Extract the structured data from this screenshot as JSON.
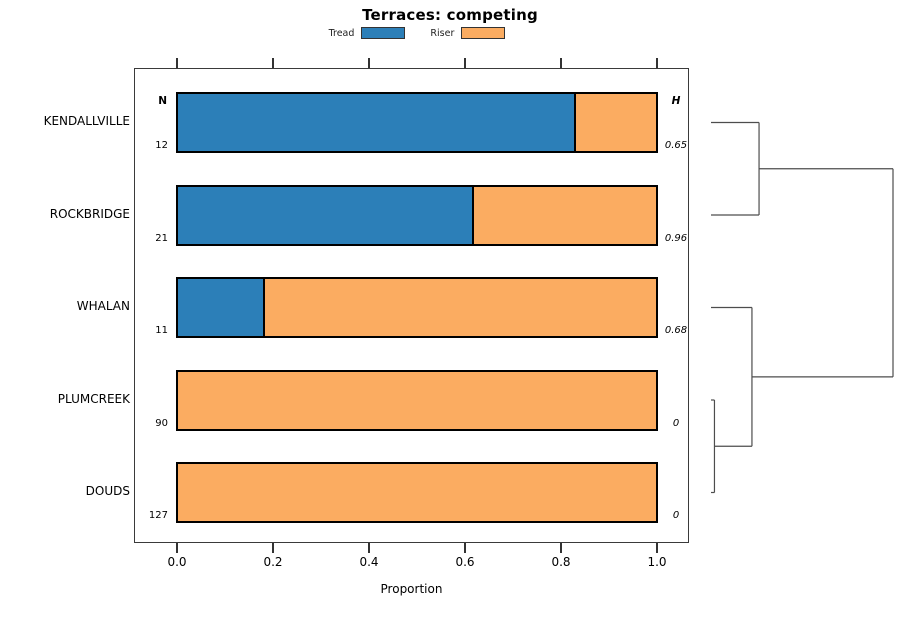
{
  "chart_data": {
    "type": "bar",
    "subtype": "horizontal_stacked_proportion",
    "title": "Terraces: competing",
    "xlabel": "Proportion",
    "xlim": [
      0,
      1
    ],
    "x_ticks": [
      "0.0",
      "0.2",
      "0.4",
      "0.6",
      "0.8",
      "1.0"
    ],
    "grid": false,
    "legend_position": "top",
    "categories": [
      "KENDALLVILLE",
      "ROCKBRIDGE",
      "WHALAN",
      "PLUMCREEK",
      "DOUDS"
    ],
    "series": [
      {
        "name": "Tread",
        "color": "#2c7fb8",
        "values": [
          0.833,
          0.619,
          0.182,
          0,
          0
        ]
      },
      {
        "name": "Riser",
        "color": "#fbac61",
        "values": [
          0.167,
          0.381,
          0.818,
          1,
          1
        ]
      }
    ],
    "n_label": "N",
    "n_values": [
      "12",
      "21",
      "11",
      "90",
      "127"
    ],
    "h_label": "H",
    "h_values": [
      "0.65",
      "0.96",
      "0.68",
      "0",
      "0"
    ],
    "bar_border_color": "#000000",
    "dendrogram": {
      "topology": "((KENDALLVILLE,ROCKBRIDGE),(WHALAN,(PLUMCREEK,DOUDS)))",
      "merges": [
        {
          "id": "PD",
          "children": [
            3,
            4
          ],
          "rel_height": 0.019
        },
        {
          "id": "WPD",
          "children": [
            2,
            "PD"
          ],
          "rel_height": 0.225
        },
        {
          "id": "KR",
          "children": [
            0,
            1
          ],
          "rel_height": 0.264
        },
        {
          "id": "root",
          "children": [
            "KR",
            "WPD"
          ],
          "rel_height": 1.0
        }
      ]
    }
  }
}
